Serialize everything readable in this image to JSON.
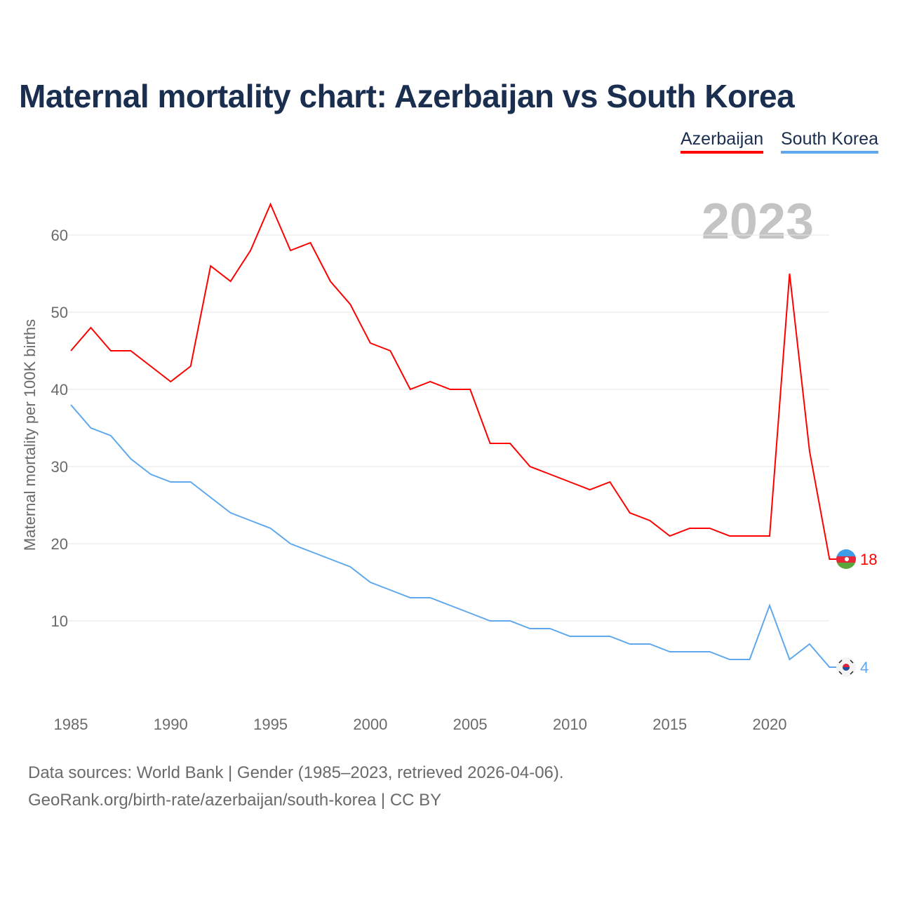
{
  "chart_data": {
    "type": "line",
    "title": "Maternal mortality chart: Azerbaijan vs South Korea",
    "ylabel": "Maternal mortality per 100K births",
    "xlabel": "",
    "year_label": "2023",
    "x": [
      1985,
      1986,
      1987,
      1988,
      1989,
      1990,
      1991,
      1992,
      1993,
      1994,
      1995,
      1996,
      1997,
      1998,
      1999,
      2000,
      2001,
      2002,
      2003,
      2004,
      2005,
      2006,
      2007,
      2008,
      2009,
      2010,
      2011,
      2012,
      2013,
      2014,
      2015,
      2016,
      2017,
      2018,
      2019,
      2020,
      2021,
      2022,
      2023
    ],
    "xlim": [
      1985,
      2023
    ],
    "ylim": [
      0,
      65
    ],
    "xticks": [
      "1985",
      "1990",
      "1995",
      "2000",
      "2005",
      "2010",
      "2015",
      "2020"
    ],
    "yticks": [
      "10",
      "20",
      "30",
      "40",
      "50",
      "60"
    ],
    "grid": true,
    "legend_position": "top-right",
    "series": [
      {
        "name": "Azerbaijan",
        "color": "#ff0000",
        "end_label": "18",
        "values": [
          45,
          48,
          45,
          45,
          43,
          41,
          43,
          56,
          54,
          58,
          64,
          58,
          59,
          54,
          51,
          46,
          45,
          40,
          41,
          40,
          40,
          33,
          33,
          30,
          29,
          28,
          27,
          28,
          24,
          23,
          21,
          22,
          22,
          21,
          21,
          21,
          55,
          32,
          18
        ]
      },
      {
        "name": "South Korea",
        "color": "#5fa8ee",
        "end_label": "4",
        "values": [
          38,
          35,
          34,
          31,
          29,
          28,
          28,
          26,
          24,
          23,
          22,
          20,
          19,
          18,
          17,
          15,
          14,
          13,
          13,
          12,
          11,
          10,
          10,
          9,
          9,
          8,
          8,
          8,
          7,
          7,
          6,
          6,
          6,
          5,
          5,
          12,
          5,
          7,
          4
        ]
      }
    ]
  },
  "footer": {
    "line1": "Data sources: World Bank | Gender (1985–2023, retrieved 2026-04-06).",
    "line2": "GeoRank.org/birth-rate/azerbaijan/south-korea | CC BY"
  }
}
